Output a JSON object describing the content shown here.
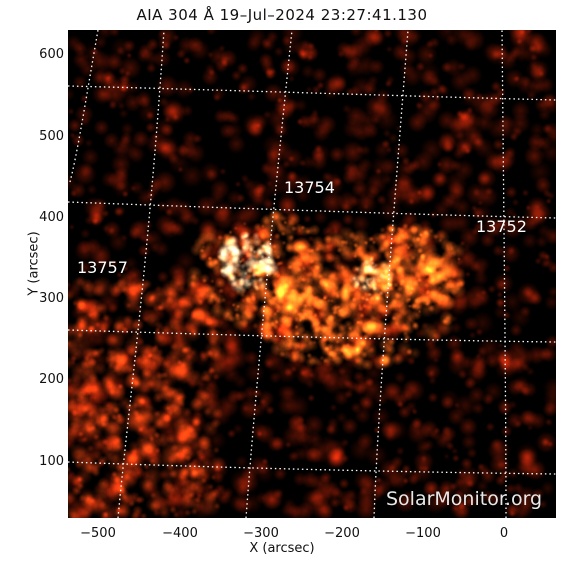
{
  "title": "AIA 304 Å 19–Jul–2024 23:27:41.130",
  "axes": {
    "x_label": "X (arcsec)",
    "y_label": "Y (arcsec)",
    "x_ticks": [
      "−500",
      "−400",
      "−300",
      "−200",
      "−100",
      "0"
    ],
    "y_ticks": [
      "600",
      "500",
      "400",
      "300",
      "200",
      "100"
    ]
  },
  "regions": [
    {
      "id": "13757",
      "label": "13757"
    },
    {
      "id": "13754",
      "label": "13754"
    },
    {
      "id": "13752",
      "label": "13752"
    }
  ],
  "credit": "SolarMonitor.org",
  "colors": {
    "background": "#000000",
    "emission_mid": "#b83010",
    "emission_bright": "#ffe0b0",
    "grid": "#ffffff"
  }
}
